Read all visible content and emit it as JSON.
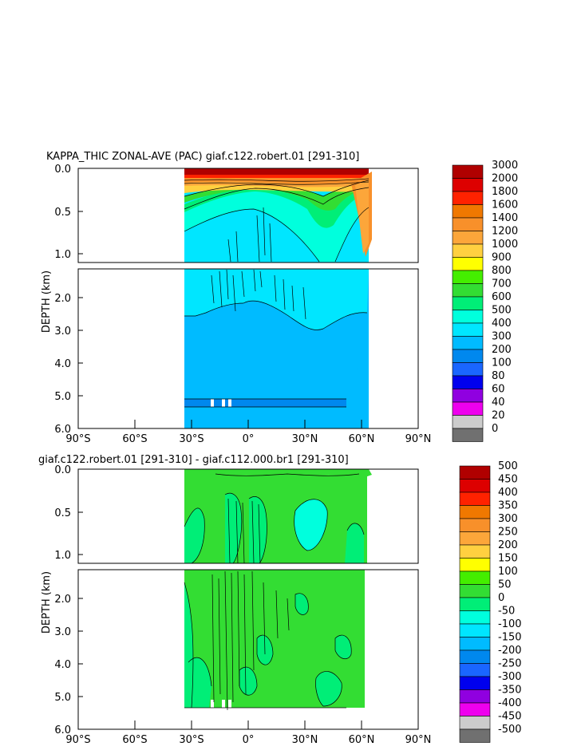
{
  "chart_data": [
    {
      "type": "heatmap",
      "title": "KAPPA_THIC ZONAL-AVE (PAC) giaf.c122.robert.01 [291-310]",
      "xlabel": "",
      "ylabel": "DEPTH (km)",
      "x_ticks": [
        "90°S",
        "60°S",
        "30°S",
        "0°",
        "30°N",
        "60°N",
        "90°N"
      ],
      "y_ticks_upper": [
        "0.0",
        "0.5",
        "1.0"
      ],
      "y_ticks_lower": [
        "2.0",
        "3.0",
        "4.0",
        "5.0",
        "6.0"
      ],
      "xlim": [
        -90,
        90
      ],
      "ylim_upper": [
        0.0,
        1.1
      ],
      "ylim_lower": [
        1.1,
        6.0
      ],
      "colorbar": {
        "labels": [
          "3000",
          "2000",
          "1800",
          "1600",
          "1400",
          "1200",
          "1000",
          "900",
          "800",
          "700",
          "600",
          "500",
          "400",
          "300",
          "200",
          "100",
          "80",
          "60",
          "40",
          "20",
          "0"
        ],
        "colors": [
          "#b00000",
          "#dd0000",
          "#ff2200",
          "#f07800",
          "#f8902a",
          "#fca63a",
          "#ffd040",
          "#ffff00",
          "#44ee00",
          "#33dd33",
          "#00ee77",
          "#00ffdd",
          "#00e6ff",
          "#00bbff",
          "#0088ee",
          "#1a66ff",
          "#0000ee",
          "#9000e0",
          "#ee00ee",
          "#cccccc",
          "#707070"
        ]
      }
    },
    {
      "type": "heatmap",
      "title": "giaf.c122.robert.01 [291-310] - giaf.c112.000.br1 [291-310]",
      "xlabel": "",
      "ylabel": "DEPTH (km)",
      "x_ticks": [
        "90°S",
        "60°S",
        "30°S",
        "0°",
        "30°N",
        "60°N",
        "90°N"
      ],
      "y_ticks_upper": [
        "0.0",
        "0.5",
        "1.0"
      ],
      "y_ticks_lower": [
        "2.0",
        "3.0",
        "4.0",
        "5.0",
        "6.0"
      ],
      "xlim": [
        -90,
        90
      ],
      "ylim_upper": [
        0.0,
        1.1
      ],
      "ylim_lower": [
        1.1,
        6.0
      ],
      "colorbar": {
        "labels": [
          "500",
          "450",
          "400",
          "350",
          "300",
          "250",
          "200",
          "150",
          "100",
          "50",
          "0",
          "-50",
          "-100",
          "-150",
          "-200",
          "-250",
          "-300",
          "-350",
          "-400",
          "-450",
          "-500"
        ],
        "colors": [
          "#b00000",
          "#dd0000",
          "#ff2200",
          "#f07800",
          "#f8902a",
          "#fca63a",
          "#ffd040",
          "#ffff00",
          "#44ee00",
          "#33dd33",
          "#00ee77",
          "#00ffdd",
          "#00e6ff",
          "#00bbff",
          "#0088ee",
          "#1a66ff",
          "#0000ee",
          "#9000e0",
          "#ee00ee",
          "#cccccc",
          "#707070"
        ]
      }
    }
  ]
}
